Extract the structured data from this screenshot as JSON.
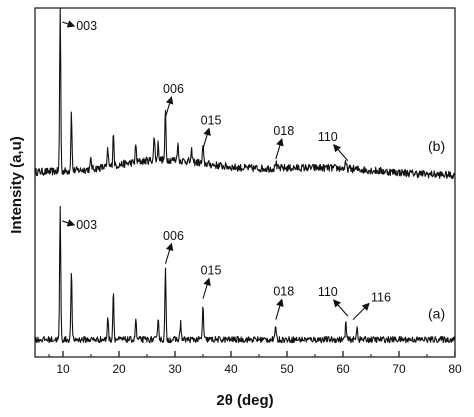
{
  "chart_data": {
    "type": "line",
    "xlabel": "2θ (deg)",
    "ylabel": "Intensity (a,u)",
    "xlim": [
      5,
      80
    ],
    "x_ticks": [
      "10",
      "20",
      "30",
      "40",
      "50",
      "60",
      "70",
      "80"
    ],
    "y_ticks_shown": false,
    "grid": false,
    "series": [
      {
        "name": "(b)",
        "baseline_level": 0.53,
        "peaks": [
          {
            "x": 9.5,
            "height": 0.47
          },
          {
            "x": 11.5,
            "height": 0.17
          },
          {
            "x": 15.0,
            "height": 0.03
          },
          {
            "x": 18.0,
            "height": 0.05
          },
          {
            "x": 19.0,
            "height": 0.1
          },
          {
            "x": 23.0,
            "height": 0.05
          },
          {
            "x": 26.3,
            "height": 0.07
          },
          {
            "x": 27.0,
            "height": 0.05
          },
          {
            "x": 28.3,
            "height": 0.14
          },
          {
            "x": 30.5,
            "height": 0.05
          },
          {
            "x": 33.0,
            "height": 0.03
          },
          {
            "x": 35.0,
            "height": 0.05
          },
          {
            "x": 48.0,
            "height": 0.02
          },
          {
            "x": 60.5,
            "height": 0.015
          }
        ]
      },
      {
        "name": "(a)",
        "baseline_level": 0.05,
        "peaks": [
          {
            "x": 9.5,
            "height": 0.38
          },
          {
            "x": 11.5,
            "height": 0.2
          },
          {
            "x": 18.0,
            "height": 0.07
          },
          {
            "x": 19.0,
            "height": 0.14
          },
          {
            "x": 23.0,
            "height": 0.06
          },
          {
            "x": 27.0,
            "height": 0.07
          },
          {
            "x": 28.3,
            "height": 0.2
          },
          {
            "x": 31.0,
            "height": 0.05
          },
          {
            "x": 35.0,
            "height": 0.1
          },
          {
            "x": 48.0,
            "height": 0.04
          },
          {
            "x": 60.5,
            "height": 0.05
          },
          {
            "x": 62.5,
            "height": 0.04
          }
        ]
      }
    ],
    "annotations": [
      {
        "text": "003",
        "series": "(b)",
        "x": 9.5
      },
      {
        "text": "006",
        "series": "(b)",
        "x": 28.3
      },
      {
        "text": "015",
        "series": "(b)",
        "x": 35.0
      },
      {
        "text": "018",
        "series": "(b)",
        "x": 48.0
      },
      {
        "text": "110",
        "series": "(b)",
        "x": 60.5
      },
      {
        "text": "003",
        "series": "(a)",
        "x": 9.5
      },
      {
        "text": "006",
        "series": "(a)",
        "x": 28.3
      },
      {
        "text": "015",
        "series": "(a)",
        "x": 35.0
      },
      {
        "text": "018",
        "series": "(a)",
        "x": 48.0
      },
      {
        "text": "110",
        "series": "(a)",
        "x": 60.5
      },
      {
        "text": "116",
        "series": "(a)",
        "x": 62.5
      }
    ],
    "line_color": "#111111"
  }
}
